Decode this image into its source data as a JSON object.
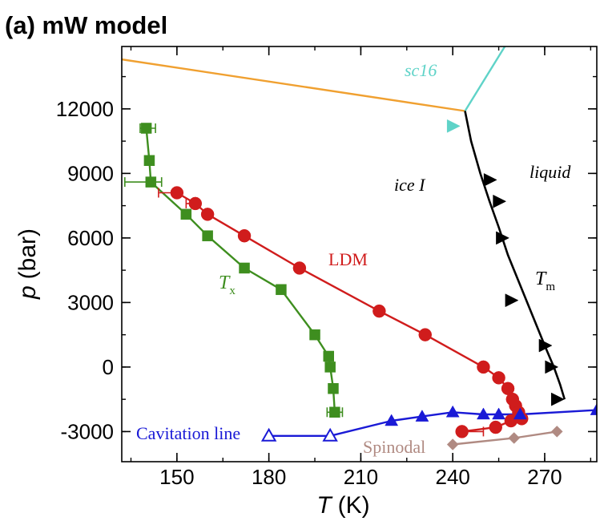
{
  "panel_title": "(a) mW model",
  "chart_data": {
    "type": "scatter",
    "xlabel_symbol": "T",
    "xlabel_unit": "(K)",
    "ylabel_symbol": "p",
    "ylabel_unit": "(bar)",
    "xlim": [
      132,
      287
    ],
    "ylim": [
      -4400,
      14900
    ],
    "xticks": [
      150,
      180,
      210,
      240,
      270
    ],
    "yticks": [
      -3000,
      0,
      3000,
      6000,
      9000,
      12000
    ],
    "grid": false,
    "colors": {
      "tm": "#000000",
      "ldm": "#d01c1c",
      "tx": "#3e8e1f",
      "cavitation": "#1a1ad6",
      "spinodal": "#b08a82",
      "ice_boundary": "#f0a030",
      "sc16": "#5fd3c8"
    },
    "annotations": {
      "sc16": "sc16",
      "liquid": "liquid",
      "ice": "ice I",
      "ldm": "LDM",
      "tx_main": "T",
      "tx_sub": "x",
      "tm_main": "T",
      "tm_sub": "m",
      "cavitation": "Cavitation line",
      "spinodal": "Spinodal"
    },
    "series": {
      "ice_boundary": {
        "marker": "none",
        "x": [
          132,
          244
        ],
        "y": [
          14300,
          11900
        ]
      },
      "sc16_line": {
        "marker": "none",
        "x": [
          244,
          257
        ],
        "y": [
          11900,
          14900
        ]
      },
      "sc16_point": {
        "marker": "triangle-right",
        "x": [
          240
        ],
        "y": [
          11200
        ]
      },
      "tm": {
        "marker": "triangle-right",
        "line_x": [
          244,
          246,
          249,
          252,
          255,
          258,
          262,
          266,
          270,
          273,
          275,
          276.5
        ],
        "line_y": [
          11900,
          10500,
          9000,
          7700,
          6500,
          5200,
          3800,
          2400,
          1000,
          0,
          -800,
          -1500
        ],
        "x": [
          252,
          255,
          256,
          259,
          270,
          272,
          274
        ],
        "y": [
          8700,
          7700,
          6000,
          3100,
          1000,
          0,
          -1500
        ]
      },
      "ldm": {
        "marker": "circle",
        "x": [
          150,
          156,
          160,
          172,
          190,
          216,
          231,
          250,
          255,
          258,
          259.5,
          260.5,
          261.5,
          262.5
        ],
        "y": [
          8100,
          7600,
          7100,
          6100,
          4600,
          2600,
          1500,
          0,
          -500,
          -1000,
          -1500,
          -1800,
          -2100,
          -2400
        ],
        "err_x": [
          {
            "x": 150,
            "y": 8100,
            "lo": 144
          },
          {
            "x": 156,
            "y": 7600,
            "lo": 153
          }
        ]
      },
      "ldm_low": {
        "marker": "circle",
        "x": [
          243,
          254,
          259
        ],
        "y": [
          -3000,
          -2800,
          -2500
        ],
        "err_x": [
          {
            "x": 243,
            "y": -3000,
            "hi": 250
          }
        ]
      },
      "tx": {
        "marker": "square",
        "x": [
          140,
          141,
          141.5,
          153,
          160,
          172,
          184,
          195,
          199.5,
          200,
          201,
          201.5
        ],
        "y": [
          11100,
          9600,
          8600,
          7100,
          6100,
          4600,
          3600,
          1500,
          500,
          0,
          -1000,
          -2100
        ],
        "err_x": [
          {
            "x": 140,
            "y": 11100,
            "lo": 138,
            "hi": 143
          },
          {
            "x": 141.5,
            "y": 8600,
            "lo": 133,
            "hi": 145
          },
          {
            "x": 201.5,
            "y": -2100,
            "lo": 199,
            "hi": 204
          }
        ]
      },
      "cavitation": {
        "marker": "triangle-up",
        "line_x": [
          180,
          200,
          220,
          230,
          240,
          250,
          255,
          262,
          287
        ],
        "line_y": [
          -3200,
          -3200,
          -2500,
          -2300,
          -2100,
          -2200,
          -2200,
          -2200,
          -2000
        ],
        "x": [
          220,
          230,
          240,
          250,
          255,
          262,
          287
        ],
        "y": [
          -2500,
          -2300,
          -2100,
          -2200,
          -2200,
          -2200,
          -2000
        ],
        "open_x": [
          180,
          200
        ],
        "open_y": [
          -3200,
          -3200
        ]
      },
      "spinodal": {
        "marker": "diamond",
        "x": [
          240,
          260,
          274
        ],
        "y": [
          -3600,
          -3300,
          -3000
        ]
      }
    }
  }
}
